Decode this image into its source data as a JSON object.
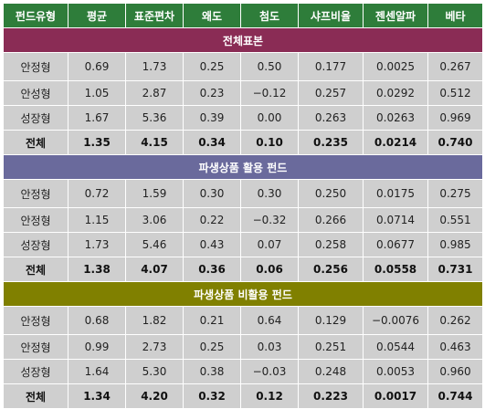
{
  "headers": [
    "펀드유형",
    "평균",
    "표준편차",
    "왜도",
    "첨도",
    "샤프비율",
    "젠센알파",
    "베타"
  ],
  "sections": [
    {
      "title": "전체표본",
      "rows": [
        [
          "안정형",
          "0.69",
          "1.73",
          "0.25",
          "0.50",
          "0.177",
          "0.0025",
          "0.267"
        ],
        [
          "안성형",
          "1.05",
          "2.87",
          "0.23",
          "−0.12",
          "0.257",
          "0.0292",
          "0.512"
        ],
        [
          "성장형",
          "1.67",
          "5.36",
          "0.39",
          "0.00",
          "0.263",
          "0.0263",
          "0.969"
        ]
      ],
      "total": [
        "전체",
        "1.35",
        "4.15",
        "0.34",
        "0.10",
        "0.235",
        "0.0214",
        "0.740"
      ]
    },
    {
      "title": "파생상품 활용 펀드",
      "rows": [
        [
          "안정형",
          "0.72",
          "1.59",
          "0.30",
          "0.30",
          "0.250",
          "0.0175",
          "0.275"
        ],
        [
          "안정형",
          "1.15",
          "3.06",
          "0.22",
          "−0.32",
          "0.266",
          "0.0714",
          "0.551"
        ],
        [
          "성장형",
          "1.73",
          "5.46",
          "0.43",
          "0.07",
          "0.258",
          "0.0677",
          "0.985"
        ]
      ],
      "total": [
        "전체",
        "1.38",
        "4.07",
        "0.36",
        "0.06",
        "0.256",
        "0.0558",
        "0.731"
      ]
    },
    {
      "title": "파생상품 비활용 펀드",
      "rows": [
        [
          "안정형",
          "0.68",
          "1.82",
          "0.21",
          "0.64",
          "0.129",
          "−0.0076",
          "0.262"
        ],
        [
          "안정형",
          "0.99",
          "2.73",
          "0.25",
          "0.03",
          "0.251",
          "0.0544",
          "0.463"
        ],
        [
          "성장형",
          "1.64",
          "5.30",
          "0.38",
          "−0.03",
          "0.248",
          "0.0053",
          "0.960"
        ]
      ],
      "total": [
        "전체",
        "1.34",
        "4.20",
        "0.32",
        "0.12",
        "0.223",
        "0.0017",
        "0.744"
      ]
    }
  ],
  "colors": {
    "header": "#2e7d3a",
    "section_0": "#8a2c55",
    "section_1": "#6a6a9c",
    "section_2": "#808000",
    "cell": "#cfcfcf"
  }
}
